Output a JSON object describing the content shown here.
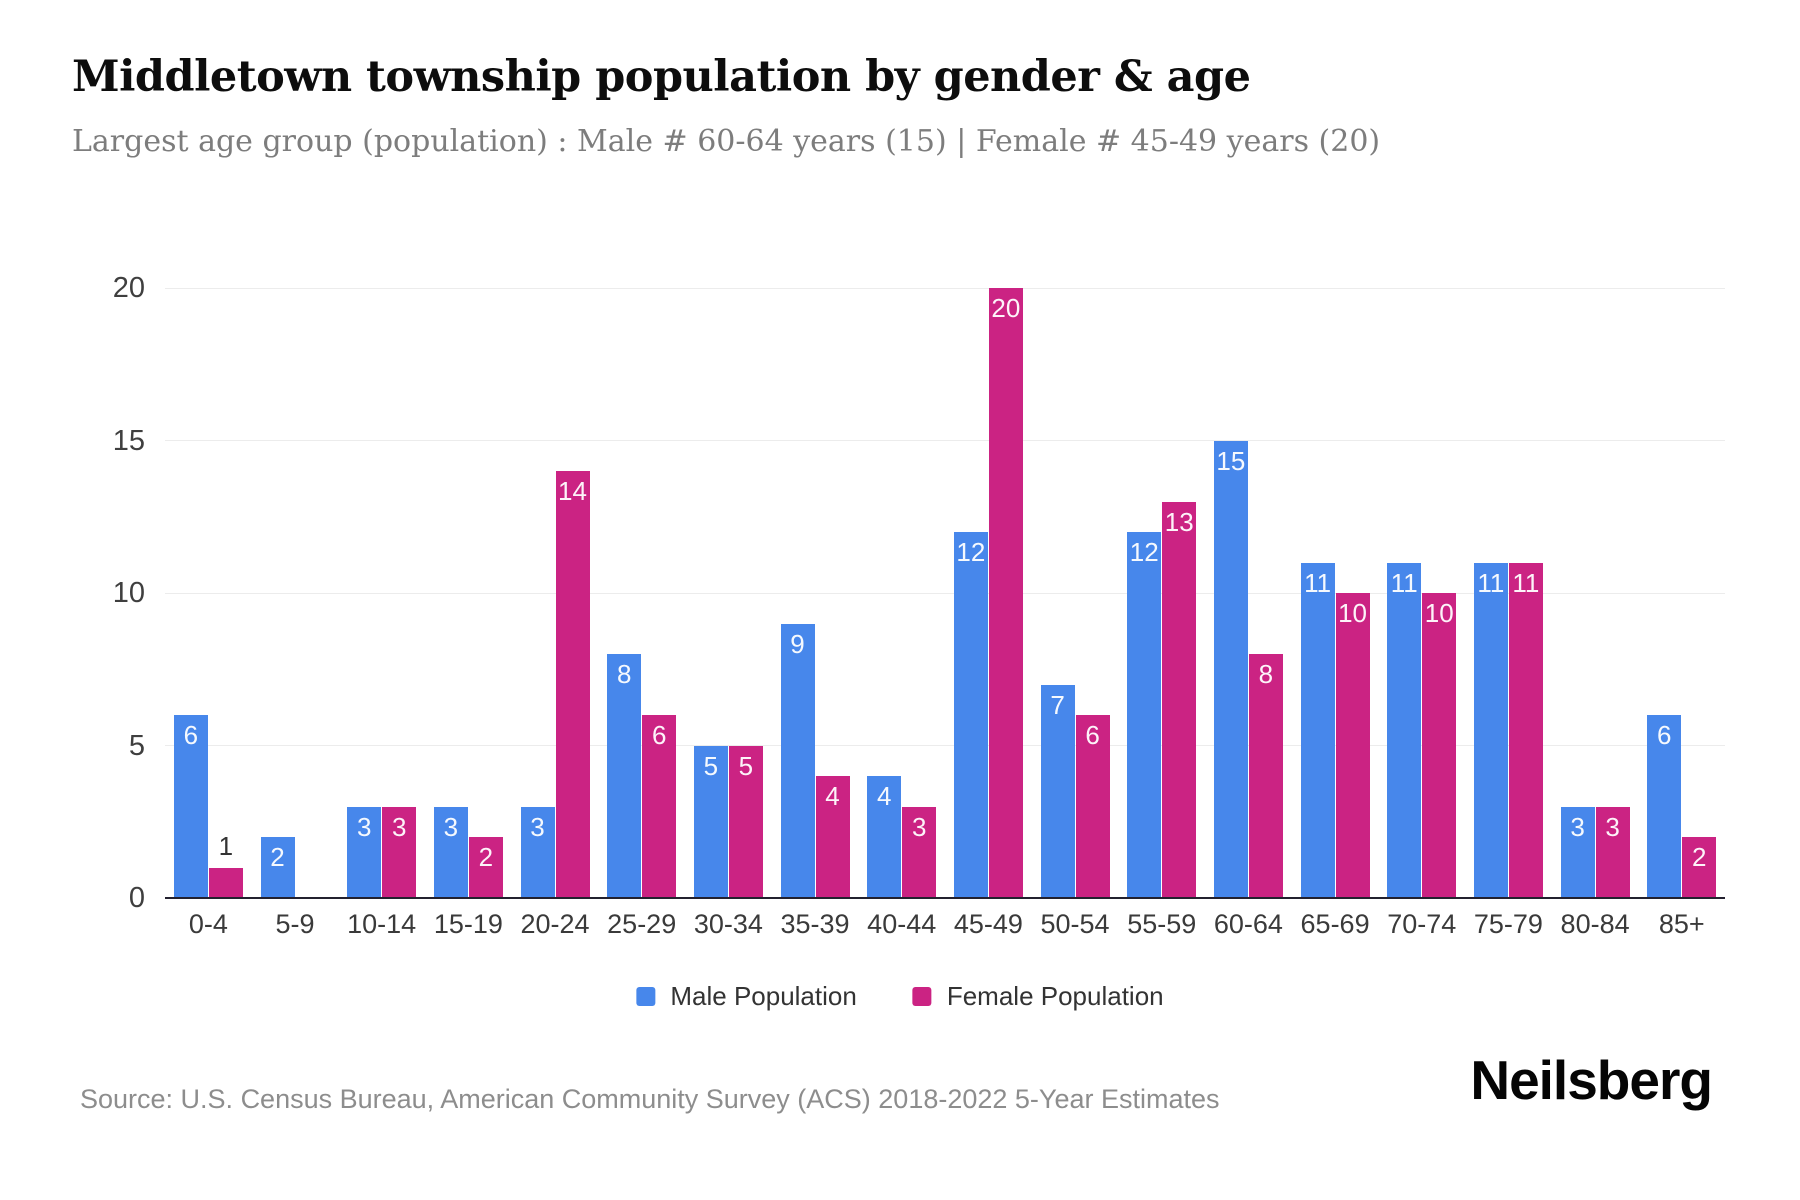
{
  "header": {
    "title": "Middletown township population by gender & age",
    "subtitle": "Largest age group (population) : Male # 60-64 years (15) | Female # 45-49 years (20)"
  },
  "chart_data": {
    "type": "bar",
    "title": "Middletown township population by gender & age",
    "categories": [
      "0-4",
      "5-9",
      "10-14",
      "15-19",
      "20-24",
      "25-29",
      "30-34",
      "35-39",
      "40-44",
      "45-49",
      "50-54",
      "55-59",
      "60-64",
      "65-69",
      "70-74",
      "75-79",
      "80-84",
      "85+"
    ],
    "series": [
      {
        "name": "Male Population",
        "color": "#4787EB",
        "values": [
          6,
          2,
          3,
          3,
          3,
          8,
          5,
          9,
          4,
          12,
          7,
          12,
          15,
          11,
          11,
          11,
          3,
          6
        ]
      },
      {
        "name": "Female Population",
        "color": "#CB2383",
        "values": [
          1,
          0,
          3,
          2,
          14,
          6,
          5,
          4,
          3,
          20,
          6,
          13,
          8,
          10,
          10,
          11,
          3,
          2
        ]
      }
    ],
    "xlabel": "",
    "ylabel": "",
    "yticks": [
      0,
      5,
      10,
      15,
      20
    ],
    "ylim": [
      0,
      20
    ],
    "grid": true,
    "legend_position": "bottom",
    "value_labels": true
  },
  "footer": {
    "source": "Source: U.S. Census Bureau, American Community Survey (ACS) 2018-2022 5-Year Estimates",
    "brand": "Neilsberg"
  }
}
